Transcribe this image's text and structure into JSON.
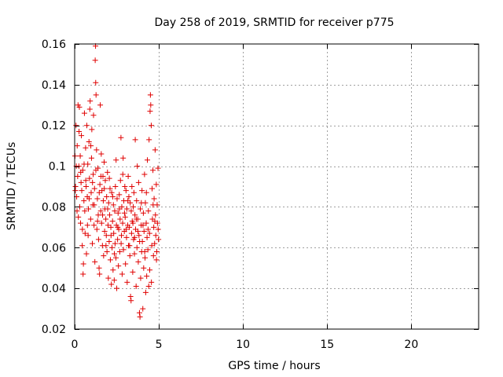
{
  "chart_data": {
    "type": "scatter",
    "title": "Day 258 of 2019, SRMTID for receiver p775",
    "xlabel": "GPS time / hours",
    "ylabel": "SRMTID / TECUs",
    "xlim": [
      0,
      24
    ],
    "ylim": [
      0.02,
      0.16
    ],
    "xticks": [
      0,
      5,
      10,
      15,
      20
    ],
    "xtick_labels": [
      "0",
      "5",
      "10",
      "15",
      "20"
    ],
    "yticks": [
      0.02,
      0.04,
      0.06,
      0.08,
      0.1,
      0.12,
      0.14,
      0.16
    ],
    "ytick_labels": [
      "0.02",
      "0.04",
      "0.06",
      "0.08",
      "0.1",
      "0.12",
      "0.14",
      "0.16"
    ],
    "grid": true,
    "marker": "+",
    "series": [
      {
        "name": "SRMTID",
        "color": "#e00000",
        "points": [
          [
            0.02,
            0.105
          ],
          [
            0.05,
            0.09
          ],
          [
            0.08,
            0.12
          ],
          [
            0.1,
            0.1
          ],
          [
            0.12,
            0.085
          ],
          [
            0.15,
            0.11
          ],
          [
            0.18,
            0.095
          ],
          [
            0.2,
            0.13
          ],
          [
            0.22,
            0.075
          ],
          [
            0.25,
            0.1
          ],
          [
            0.28,
            0.129
          ],
          [
            0.3,
            0.08
          ],
          [
            0.33,
            0.105
          ],
          [
            0.35,
            0.072
          ],
          [
            0.38,
            0.092
          ],
          [
            0.4,
            0.115
          ],
          [
            0.42,
            0.088
          ],
          [
            0.45,
            0.061
          ],
          [
            0.48,
            0.098
          ],
          [
            0.5,
            0.047
          ],
          [
            0.52,
            0.052
          ],
          [
            0.55,
            0.083
          ],
          [
            0.58,
            0.126
          ],
          [
            0.6,
            0.078
          ],
          [
            0.62,
            0.067
          ],
          [
            0.65,
            0.109
          ],
          [
            0.68,
            0.09
          ],
          [
            0.7,
            0.057
          ],
          [
            0.72,
            0.12
          ],
          [
            0.75,
            0.085
          ],
          [
            0.78,
            0.101
          ],
          [
            0.8,
            0.066
          ],
          [
            0.82,
            0.079
          ],
          [
            0.85,
            0.112
          ],
          [
            0.88,
            0.094
          ],
          [
            0.9,
            0.128
          ],
          [
            0.92,
            0.132
          ],
          [
            0.95,
            0.074
          ],
          [
            0.98,
            0.087
          ],
          [
            1.0,
            0.104
          ],
          [
            1.02,
            0.118
          ],
          [
            1.05,
            0.062
          ],
          [
            1.08,
            0.081
          ],
          [
            1.1,
            0.096
          ],
          [
            1.12,
            0.125
          ],
          [
            1.15,
            0.071
          ],
          [
            1.18,
            0.089
          ],
          [
            1.2,
            0.053
          ],
          [
            1.22,
            0.152
          ],
          [
            1.24,
            0.159
          ],
          [
            1.25,
            0.141
          ],
          [
            1.27,
            0.135
          ],
          [
            1.3,
            0.108
          ],
          [
            1.32,
            0.069
          ],
          [
            1.35,
            0.084
          ],
          [
            1.38,
            0.099
          ],
          [
            1.4,
            0.076
          ],
          [
            1.42,
            0.064
          ],
          [
            1.45,
            0.05
          ],
          [
            1.48,
            0.047
          ],
          [
            1.5,
            0.091
          ],
          [
            1.52,
            0.13
          ],
          [
            1.55,
            0.078
          ],
          [
            1.58,
            0.106
          ],
          [
            1.6,
            0.072
          ],
          [
            1.62,
            0.088
          ],
          [
            1.65,
            0.061
          ],
          [
            1.68,
            0.095
          ],
          [
            1.7,
            0.083
          ],
          [
            1.72,
            0.056
          ],
          [
            1.75,
            0.102
          ],
          [
            1.78,
            0.068
          ],
          [
            1.8,
            0.079
          ],
          [
            1.82,
            0.093
          ],
          [
            1.85,
            0.074
          ],
          [
            1.88,
            0.066
          ],
          [
            1.9,
            0.085
          ],
          [
            1.92,
            0.058
          ],
          [
            1.95,
            0.097
          ],
          [
            1.98,
            0.071
          ],
          [
            2.0,
            0.045
          ],
          [
            2.02,
            0.082
          ],
          [
            2.05,
            0.063
          ],
          [
            2.08,
            0.076
          ],
          [
            2.1,
            0.089
          ],
          [
            2.12,
            0.054
          ],
          [
            2.15,
            0.07
          ],
          [
            2.18,
            0.042
          ],
          [
            2.2,
            0.087
          ],
          [
            2.22,
            0.06
          ],
          [
            2.25,
            0.073
          ],
          [
            2.28,
            0.049
          ],
          [
            2.3,
            0.081
          ],
          [
            2.32,
            0.067
          ],
          [
            2.35,
            0.044
          ],
          [
            2.38,
            0.078
          ],
          [
            2.4,
            0.062
          ],
          [
            2.42,
            0.09
          ],
          [
            2.45,
            0.055
          ],
          [
            2.48,
            0.071
          ],
          [
            2.5,
            0.04
          ],
          [
            2.52,
            0.084
          ],
          [
            2.55,
            0.064
          ],
          [
            2.58,
            0.077
          ],
          [
            2.6,
            0.051
          ],
          [
            2.62,
            0.069
          ],
          [
            2.65,
            0.086
          ],
          [
            2.68,
            0.058
          ],
          [
            2.7,
            0.074
          ],
          [
            2.72,
            0.093
          ],
          [
            2.75,
            0.114
          ],
          [
            2.78,
            0.066
          ],
          [
            2.8,
            0.08
          ],
          [
            2.82,
            0.047
          ],
          [
            2.85,
            0.072
          ],
          [
            2.88,
            0.104
          ],
          [
            2.9,
            0.059
          ],
          [
            2.92,
            0.083
          ],
          [
            2.95,
            0.068
          ],
          [
            2.98,
            0.09
          ],
          [
            3.0,
            0.075
          ],
          [
            3.02,
            0.052
          ],
          [
            3.05,
            0.088
          ],
          [
            3.08,
            0.065
          ],
          [
            3.1,
            0.079
          ],
          [
            3.12,
            0.043
          ],
          [
            3.15,
            0.071
          ],
          [
            3.18,
            0.095
          ],
          [
            3.2,
            0.061
          ],
          [
            3.22,
            0.085
          ],
          [
            3.25,
            0.07
          ],
          [
            3.28,
            0.056
          ],
          [
            3.3,
            0.082
          ],
          [
            3.32,
            0.036
          ],
          [
            3.35,
            0.034
          ],
          [
            3.38,
            0.067
          ],
          [
            3.4,
            0.09
          ],
          [
            3.42,
            0.073
          ],
          [
            3.45,
            0.048
          ],
          [
            3.48,
            0.08
          ],
          [
            3.5,
            0.064
          ],
          [
            3.52,
            0.087
          ],
          [
            3.55,
            0.057
          ],
          [
            3.58,
            0.076
          ],
          [
            3.6,
            0.113
          ],
          [
            3.62,
            0.069
          ],
          [
            3.65,
            0.041
          ],
          [
            3.68,
            0.083
          ],
          [
            3.7,
            0.06
          ],
          [
            3.72,
            0.1
          ],
          [
            3.75,
            0.074
          ],
          [
            3.78,
            0.053
          ],
          [
            3.8,
            0.092
          ],
          [
            3.82,
            0.066
          ],
          [
            3.85,
            0.028
          ],
          [
            3.88,
            0.026
          ],
          [
            3.9,
            0.079
          ],
          [
            3.92,
            0.045
          ],
          [
            3.95,
            0.071
          ],
          [
            3.98,
            0.058
          ],
          [
            4.0,
            0.088
          ],
          [
            4.02,
            0.063
          ],
          [
            4.05,
            0.03
          ],
          [
            4.08,
            0.077
          ],
          [
            4.1,
            0.05
          ],
          [
            4.12,
            0.068
          ],
          [
            4.15,
            0.096
          ],
          [
            4.18,
            0.055
          ],
          [
            4.2,
            0.082
          ],
          [
            4.22,
            0.038
          ],
          [
            4.25,
            0.072
          ],
          [
            4.28,
            0.046
          ],
          [
            4.3,
            0.065
          ],
          [
            4.32,
            0.103
          ],
          [
            4.35,
            0.059
          ],
          [
            4.38,
            0.078
          ],
          [
            4.4,
            0.041
          ],
          [
            4.42,
            0.113
          ],
          [
            4.45,
            0.067
          ],
          [
            4.48,
            0.127
          ],
          [
            4.5,
            0.135
          ],
          [
            4.52,
            0.13
          ],
          [
            4.55,
            0.12
          ],
          [
            4.58,
            0.061
          ],
          [
            4.6,
            0.089
          ],
          [
            4.62,
            0.074
          ],
          [
            4.65,
            0.098
          ],
          [
            4.68,
            0.056
          ],
          [
            4.7,
            0.07
          ],
          [
            4.72,
            0.084
          ],
          [
            4.75,
            0.062
          ],
          [
            4.78,
            0.108
          ],
          [
            4.8,
            0.076
          ],
          [
            4.82,
            0.066
          ],
          [
            4.85,
            0.091
          ],
          [
            4.88,
            0.058
          ],
          [
            4.9,
            0.081
          ],
          [
            4.92,
            0.072
          ],
          [
            4.95,
            0.099
          ],
          [
            4.98,
            0.064
          ],
          [
            0.04,
            0.088
          ],
          [
            0.14,
            0.078
          ],
          [
            0.26,
            0.117
          ],
          [
            0.36,
            0.097
          ],
          [
            0.46,
            0.069
          ],
          [
            0.56,
            0.101
          ],
          [
            0.66,
            0.093
          ],
          [
            0.76,
            0.071
          ],
          [
            0.86,
            0.084
          ],
          [
            0.96,
            0.11
          ],
          [
            1.06,
            0.092
          ],
          [
            1.16,
            0.081
          ],
          [
            1.26,
            0.098
          ],
          [
            1.36,
            0.073
          ],
          [
            1.46,
            0.087
          ],
          [
            1.56,
            0.095
          ],
          [
            1.66,
            0.076
          ],
          [
            1.76,
            0.089
          ],
          [
            1.86,
            0.061
          ],
          [
            1.96,
            0.079
          ],
          [
            2.06,
            0.094
          ],
          [
            2.16,
            0.066
          ],
          [
            2.26,
            0.085
          ],
          [
            2.36,
            0.057
          ],
          [
            2.46,
            0.103
          ],
          [
            2.56,
            0.07
          ],
          [
            2.66,
            0.079
          ],
          [
            2.76,
            0.062
          ],
          [
            2.86,
            0.096
          ],
          [
            2.96,
            0.077
          ],
          [
            3.06,
            0.069
          ],
          [
            3.16,
            0.083
          ],
          [
            3.26,
            0.061
          ],
          [
            3.36,
            0.078
          ],
          [
            3.46,
            0.072
          ],
          [
            3.56,
            0.065
          ],
          [
            3.66,
            0.074
          ],
          [
            3.76,
            0.068
          ],
          [
            3.86,
            0.063
          ],
          [
            3.96,
            0.082
          ],
          [
            4.06,
            0.071
          ],
          [
            4.16,
            0.058
          ],
          [
            4.26,
            0.087
          ],
          [
            4.36,
            0.069
          ],
          [
            4.46,
            0.049
          ],
          [
            4.56,
            0.043
          ],
          [
            4.66,
            0.081
          ],
          [
            4.76,
            0.073
          ],
          [
            4.86,
            0.054
          ],
          [
            4.96,
            0.069
          ]
        ]
      }
    ]
  }
}
